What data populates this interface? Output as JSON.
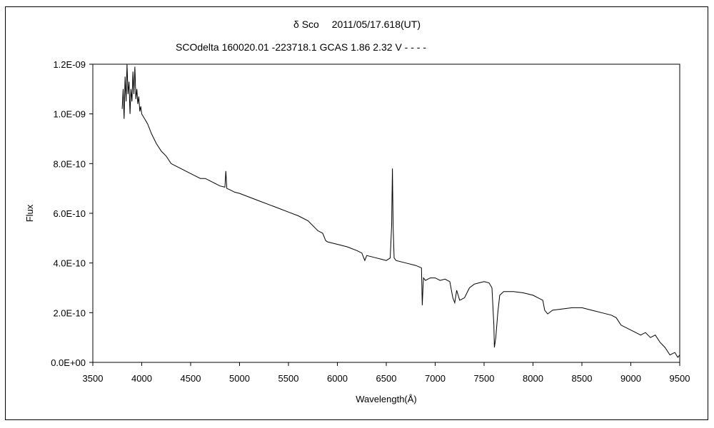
{
  "chart_data": {
    "type": "line",
    "title": "δ Sco　 2011/05/17.618(UT)",
    "subtitle": "SCOdelta 160020.01 -223718.1 GCAS 1.86 2.32 V - - - -",
    "xlabel": "Wavelength(Å)",
    "ylabel": "Flux",
    "xlim": [
      3500,
      9500
    ],
    "ylim": [
      0,
      1.2e-09
    ],
    "x_ticks": [
      "3500",
      "4000",
      "4500",
      "5000",
      "5500",
      "6000",
      "6500",
      "7000",
      "7500",
      "8000",
      "8500",
      "9000",
      "9500"
    ],
    "y_ticks": [
      "0.0E+00",
      "2.0E-10",
      "4.0E-10",
      "6.0E-10",
      "8.0E-10",
      "1.0E-09",
      "1.2E-09"
    ],
    "grid": false,
    "line_color": "#000000",
    "series": [
      {
        "x": [
          3800,
          3810,
          3820,
          3830,
          3840,
          3850,
          3860,
          3870,
          3880,
          3890,
          3900,
          3910,
          3920,
          3930,
          3940,
          3950,
          3960,
          3970,
          3980,
          3990,
          4000,
          4030,
          4060,
          4100,
          4150,
          4200,
          4250,
          4300,
          4350,
          4400,
          4450,
          4500,
          4550,
          4600,
          4650,
          4700,
          4750,
          4800,
          4850,
          4860,
          4870,
          4900,
          4950,
          5000,
          5100,
          5200,
          5300,
          5400,
          5500,
          5600,
          5700,
          5800,
          5850,
          5870,
          5880,
          5900,
          6000,
          6100,
          6200,
          6250,
          6280,
          6300,
          6400,
          6450,
          6500,
          6540,
          6555,
          6563,
          6570,
          6580,
          6600,
          6700,
          6800,
          6860,
          6868,
          6875,
          6880,
          6900,
          6950,
          7000,
          7050,
          7100,
          7150,
          7180,
          7200,
          7220,
          7250,
          7300,
          7350,
          7400,
          7450,
          7500,
          7550,
          7580,
          7600,
          7605,
          7620,
          7640,
          7660,
          7700,
          7800,
          7900,
          8000,
          8050,
          8100,
          8120,
          8150,
          8200,
          8300,
          8400,
          8500,
          8600,
          8700,
          8800,
          8850,
          8900,
          9000,
          9050,
          9100,
          9150,
          9200,
          9250,
          9300,
          9350,
          9400,
          9450,
          9480,
          9500
        ],
        "values": [
          1.02e-09,
          1.1e-09,
          9.8e-10,
          1.15e-09,
          1.05e-09,
          1.2e-09,
          1.08e-09,
          1.13e-09,
          1e-09,
          1.1e-09,
          1.05e-09,
          1.17e-09,
          1.08e-09,
          1.19e-09,
          1.06e-09,
          1.1e-09,
          1.04e-09,
          1.07e-09,
          1.01e-09,
          1.03e-09,
          1e-09,
          9.8e-10,
          9.6e-10,
          9.2e-10,
          8.8e-10,
          8.5e-10,
          8.3e-10,
          8e-10,
          7.9e-10,
          7.8e-10,
          7.7e-10,
          7.6e-10,
          7.5e-10,
          7.4e-10,
          7.4e-10,
          7.3e-10,
          7.2e-10,
          7.1e-10,
          7.05e-10,
          7.7e-10,
          7e-10,
          6.95e-10,
          6.85e-10,
          6.8e-10,
          6.65e-10,
          6.5e-10,
          6.35e-10,
          6.2e-10,
          6.05e-10,
          5.9e-10,
          5.7e-10,
          5.3e-10,
          5.2e-10,
          5e-10,
          4.9e-10,
          4.85e-10,
          4.75e-10,
          4.65e-10,
          4.5e-10,
          4.4e-10,
          4.1e-10,
          4.3e-10,
          4.2e-10,
          4.15e-10,
          4.1e-10,
          4.2e-10,
          5.5e-10,
          7.8e-10,
          5.5e-10,
          4.2e-10,
          4.1e-10,
          4e-10,
          3.9e-10,
          3.8e-10,
          2.3e-10,
          3e-10,
          3.4e-10,
          3.3e-10,
          3.4e-10,
          3.4e-10,
          3.3e-10,
          3.35e-10,
          3.25e-10,
          2.6e-10,
          2.4e-10,
          2.9e-10,
          2.5e-10,
          2.6e-10,
          3e-10,
          3.15e-10,
          3.2e-10,
          3.25e-10,
          3.2e-10,
          3e-10,
          1.5e-10,
          6e-11,
          1e-10,
          2e-10,
          2.7e-10,
          2.85e-10,
          2.85e-10,
          2.8e-10,
          2.7e-10,
          2.6e-10,
          2.5e-10,
          2.1e-10,
          1.95e-10,
          2.1e-10,
          2.15e-10,
          2.2e-10,
          2.2e-10,
          2.1e-10,
          2e-10,
          1.9e-10,
          1.8e-10,
          1.5e-10,
          1.3e-10,
          1.2e-10,
          1.1e-10,
          1.2e-10,
          1e-10,
          1.1e-10,
          8e-11,
          6e-11,
          3e-11,
          4e-11,
          2e-11,
          3e-11
        ]
      }
    ]
  }
}
